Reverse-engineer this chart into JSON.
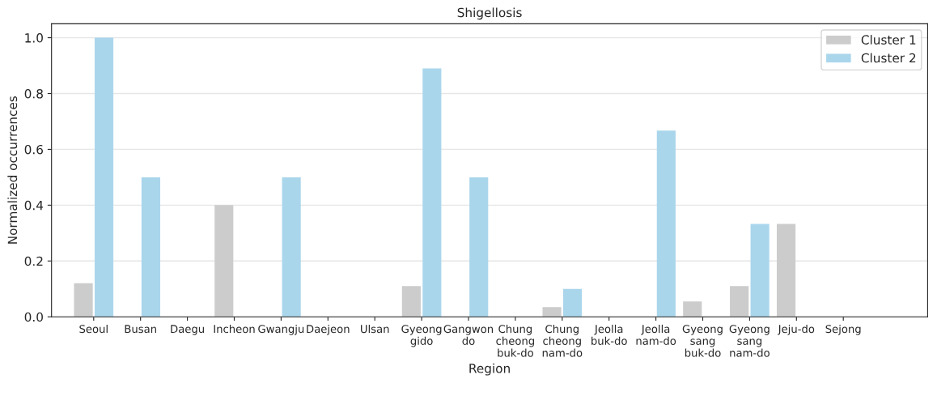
{
  "chart_data": {
    "type": "bar",
    "title": "Shigellosis",
    "xlabel": "Region",
    "ylabel": "Normalized occurrences",
    "categories": [
      "Seoul",
      "Busan",
      "Daegu",
      "Incheon",
      "Gwangju",
      "Daejeon",
      "Ulsan",
      "Gyeong\ngido",
      "Gangwon\ndo",
      "Chung\ncheong\nbuk-do",
      "Chung\ncheong\nnam-do",
      "Jeolla\nbuk-do",
      "Jeolla\nnam-do",
      "Gyeong\nsang\nbuk-do",
      "Gyeong\nsang\nnam-do",
      "Jeju-do",
      "Sejong"
    ],
    "series": [
      {
        "name": "Cluster 1",
        "color": "#cccccc",
        "values": [
          0.12,
          0,
          0,
          0.4,
          0,
          0,
          0,
          0.11,
          0,
          0,
          0.035,
          0,
          0,
          0.055,
          0.11,
          0.333,
          0
        ]
      },
      {
        "name": "Cluster 2",
        "color": "#aad6ec",
        "values": [
          1.0,
          0.5,
          0,
          0,
          0.5,
          0,
          0,
          0.89,
          0.5,
          0,
          0.1,
          0,
          0.667,
          0,
          0.333,
          0,
          0
        ]
      }
    ],
    "ylim": [
      0,
      1.05
    ],
    "yticks": [
      {
        "value": 0,
        "label": "0.0"
      },
      {
        "value": 0.2,
        "label": "0.2"
      },
      {
        "value": 0.4,
        "label": "0.4"
      },
      {
        "value": 0.6,
        "label": "0.6"
      },
      {
        "value": 0.8,
        "label": "0.8"
      },
      {
        "value": 1.0,
        "label": "1.0"
      }
    ],
    "grid": "y",
    "legend": "top right"
  }
}
